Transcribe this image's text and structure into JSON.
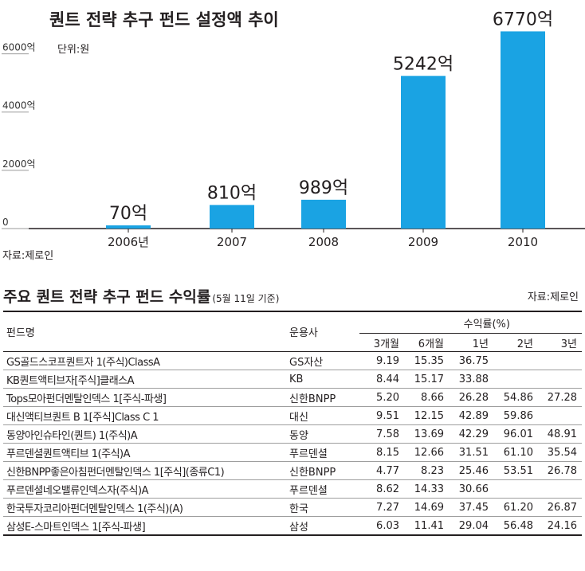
{
  "chart_data": {
    "type": "bar",
    "title": "퀀트 전략 추구 펀드 설정액 추이",
    "unit": "단위:원",
    "source": "자료:제로인",
    "categories": [
      "2006년",
      "2007",
      "2008",
      "2009",
      "2010"
    ],
    "values": [
      70,
      810,
      989,
      5242,
      6770
    ],
    "value_labels": [
      "70억",
      "810억",
      "989억",
      "5242억",
      "6770억"
    ],
    "yticks": [
      0,
      2000,
      4000,
      6000
    ],
    "ytick_labels": [
      "0",
      "2000억",
      "4000억",
      "6000억"
    ],
    "ylim": [
      0,
      7000
    ],
    "bar_color": "#1aa3e3",
    "grid": false
  },
  "table": {
    "title": "주요 퀀트 전략 추구 펀드 수익률",
    "subtitle": "(5월 11일 기준)",
    "source": "자료:제로인",
    "col_fund": "펀드명",
    "col_manager": "운용사",
    "col_group": "수익률(%)",
    "periods": [
      "3개월",
      "6개월",
      "1년",
      "2년",
      "3년"
    ],
    "rows": [
      {
        "name": "GS골드스코프퀀트자 1(주식)ClassA",
        "manager": "GS자산",
        "r3m": "9.19",
        "r6m": "15.35",
        "r1y": "36.75",
        "r2y": "",
        "r3y": ""
      },
      {
        "name": "KB퀀트액티브자[주식]클래스A",
        "manager": "KB",
        "r3m": "8.44",
        "r6m": "15.17",
        "r1y": "33.88",
        "r2y": "",
        "r3y": ""
      },
      {
        "name": "Tops모아펀더멘탈인덱스 1[주식-파생]",
        "manager": "신한BNPP",
        "r3m": "5.20",
        "r6m": "8.66",
        "r1y": "26.28",
        "r2y": "54.86",
        "r3y": "27.28"
      },
      {
        "name": "대신액티브퀀트 B 1[주식]Class C 1",
        "manager": "대신",
        "r3m": "9.51",
        "r6m": "12.15",
        "r1y": "42.89",
        "r2y": "59.86",
        "r3y": ""
      },
      {
        "name": "동양아인슈타인(퀀트) 1(주식)A",
        "manager": "동양",
        "r3m": "7.58",
        "r6m": "13.69",
        "r1y": "42.29",
        "r2y": "96.01",
        "r3y": "48.91"
      },
      {
        "name": "푸르덴셜퀀트액티브 1(주식)A",
        "manager": "푸르덴셜",
        "r3m": "8.15",
        "r6m": "12.66",
        "r1y": "31.51",
        "r2y": "61.10",
        "r3y": "35.54"
      },
      {
        "name": "신한BNPP좋은아침펀더멘탈인덱스 1[주식](종류C1)",
        "manager": "신한BNPP",
        "r3m": "4.77",
        "r6m": "8.23",
        "r1y": "25.46",
        "r2y": "53.51",
        "r3y": "26.78"
      },
      {
        "name": "푸르덴셜네오밸류인덱스자(주식)A",
        "manager": "푸르덴셜",
        "r3m": "8.62",
        "r6m": "14.33",
        "r1y": "30.66",
        "r2y": "",
        "r3y": ""
      },
      {
        "name": "한국투자코리아펀더멘탈인덱스 1(주식)(A)",
        "manager": "한국",
        "r3m": "7.27",
        "r6m": "14.69",
        "r1y": "37.45",
        "r2y": "61.20",
        "r3y": "26.87"
      },
      {
        "name": "삼성E-스마트인덱스 1[주식-파생]",
        "manager": "삼성",
        "r3m": "6.03",
        "r6m": "11.41",
        "r1y": "29.04",
        "r2y": "56.48",
        "r3y": "24.16"
      }
    ]
  }
}
